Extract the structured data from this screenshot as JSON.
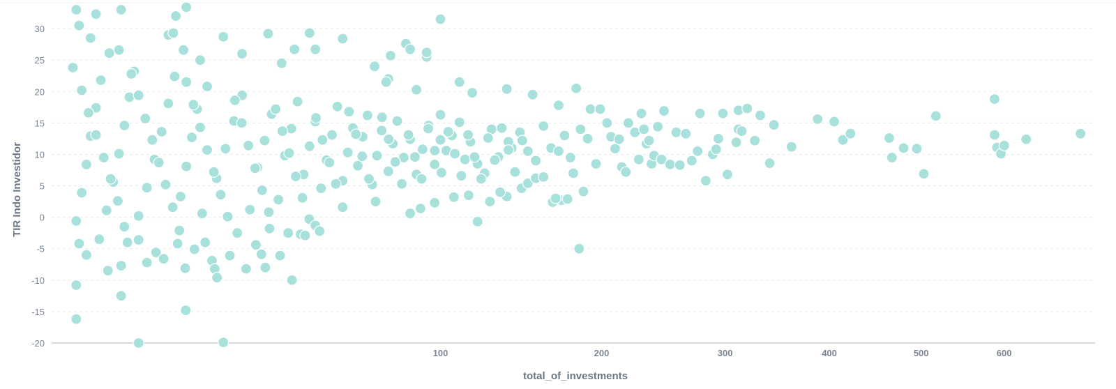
{
  "chart_data": {
    "type": "scatter",
    "xlabel": "total_of_investments",
    "ylabel": "TIR Indo Investidor",
    "x_scale": "sqrt",
    "xlim": [
      0,
      720
    ],
    "ylim": [
      -20,
      34
    ],
    "x_ticks": [
      100,
      200,
      300,
      400,
      500,
      600
    ],
    "y_ticks": [
      -20,
      -15,
      -10,
      -5,
      0,
      5,
      10,
      15,
      20,
      25,
      30
    ],
    "grid": "horizontal",
    "legend": "none",
    "point_color": "#a8e0dc",
    "series": [
      {
        "points": [
          [
            0.4,
            33
          ],
          [
            0.5,
            30.5
          ],
          [
            1.3,
            32.3
          ],
          [
            3.2,
            33
          ],
          [
            12,
            33.4
          ],
          [
            10.2,
            32
          ],
          [
            1.0,
            28.5
          ],
          [
            9,
            29
          ],
          [
            9.8,
            29.3
          ],
          [
            44,
            29.3
          ],
          [
            56,
            28.4
          ],
          [
            100,
            31.5
          ],
          [
            31,
            29.2
          ],
          [
            19.5,
            28.7
          ],
          [
            3.0,
            26.6
          ],
          [
            2.2,
            26.1
          ],
          [
            11.5,
            26.6
          ],
          [
            14.6,
            25
          ],
          [
            24,
            26
          ],
          [
            35,
            24.5
          ],
          [
            39,
            26.7
          ],
          [
            46,
            26.7
          ],
          [
            69,
            24
          ],
          [
            76,
            25.7
          ],
          [
            83,
            27.6
          ],
          [
            85,
            26.7
          ],
          [
            93,
            25.5
          ],
          [
            93,
            26.2
          ],
          [
            110,
            21.5
          ],
          [
            117,
            19.8
          ],
          [
            75,
            22
          ],
          [
            74,
            21.5
          ],
          [
            88,
            20.3
          ],
          [
            100,
            16.3
          ],
          [
            137,
            20.4
          ],
          [
            153,
            19.5
          ],
          [
            170,
            17.8
          ],
          [
            182,
            20.5
          ],
          [
            192,
            17.2
          ],
          [
            199,
            17.2
          ],
          [
            248,
            16.9
          ],
          [
            278,
            16.5
          ],
          [
            298,
            16.5
          ],
          [
            312,
            17
          ],
          [
            320,
            17.3
          ],
          [
            332,
            16.2
          ],
          [
            345,
            14.7
          ],
          [
            362,
            11.2
          ],
          [
            388,
            15.6
          ],
          [
            405,
            15.2
          ],
          [
            414,
            12.3
          ],
          [
            422,
            13.3
          ],
          [
            464,
            12.6
          ],
          [
            467,
            9.5
          ],
          [
            480,
            11
          ],
          [
            495,
            10.9
          ],
          [
            503,
            6.9
          ],
          [
            517,
            16.1
          ],
          [
            588,
            18.8
          ],
          [
            588,
            13.1
          ],
          [
            591,
            11.1
          ],
          [
            596,
            10.1
          ],
          [
            600,
            11.4
          ],
          [
            628,
            12.4
          ],
          [
            700,
            13.3
          ],
          [
            160,
            14.5
          ],
          [
            165,
            11
          ],
          [
            170,
            10.5
          ],
          [
            174,
            13
          ],
          [
            178,
            9.5
          ],
          [
            180,
            7
          ],
          [
            185,
            14
          ],
          [
            190,
            12.5
          ],
          [
            196,
            8.5
          ],
          [
            204,
            15
          ],
          [
            207,
            12.8
          ],
          [
            210,
            10.9
          ],
          [
            213,
            12.4
          ],
          [
            215,
            8
          ],
          [
            218,
            7.2
          ],
          [
            220,
            15
          ],
          [
            225,
            13.5
          ],
          [
            228,
            9.2
          ],
          [
            230,
            16.5
          ],
          [
            232,
            14
          ],
          [
            234,
            11.7
          ],
          [
            236,
            12.2
          ],
          [
            238,
            8.5
          ],
          [
            240,
            9.8
          ],
          [
            243,
            14.4
          ],
          [
            246,
            9.2
          ],
          [
            253,
            8.4
          ],
          [
            258,
            13.5
          ],
          [
            261,
            8.3
          ],
          [
            266,
            13.3
          ],
          [
            271,
            9
          ],
          [
            276,
            10.5
          ],
          [
            283,
            5.8
          ],
          [
            289,
            10
          ],
          [
            292,
            10.8
          ],
          [
            294,
            12.5
          ],
          [
            302,
            6.8
          ],
          [
            310,
            11.9
          ],
          [
            312,
            14
          ],
          [
            315,
            13.7
          ],
          [
            327,
            12.2
          ],
          [
            341,
            8.6
          ],
          [
            184,
            -5
          ],
          [
            120,
            -0.7
          ],
          [
            172,
            2.7
          ],
          [
            166,
            2.4
          ],
          [
            168,
            3
          ],
          [
            176,
            2.9
          ],
          [
            187,
            4.1
          ],
          [
            137,
            3.3
          ],
          [
            127,
            2.5
          ],
          [
            133,
            4
          ],
          [
            146,
            4.6
          ],
          [
            150,
            5.4
          ],
          [
            155,
            6.2
          ],
          [
            160,
            6.4
          ],
          [
            115,
            3.5
          ],
          [
            107,
            3.2
          ],
          [
            97,
            2.3
          ],
          [
            90,
            1.4
          ],
          [
            85,
            0.6
          ],
          [
            140,
            11
          ],
          [
            145,
            13.5
          ],
          [
            150,
            10.5
          ],
          [
            155,
            9
          ],
          [
            138,
            12
          ],
          [
            132,
            9.6
          ],
          [
            128,
            14
          ],
          [
            124,
            7
          ],
          [
            120,
            8.5
          ],
          [
            116,
            12
          ],
          [
            113,
            9.2
          ],
          [
            110,
            15.1
          ],
          [
            106,
            13
          ],
          [
            103,
            10.6
          ],
          [
            100,
            12.3
          ],
          [
            97,
            8.4
          ],
          [
            94,
            14.6
          ],
          [
            91,
            10.8
          ],
          [
            88,
            6.8
          ],
          [
            85,
            12.4
          ],
          [
            82,
            9.5
          ],
          [
            79,
            15.3
          ],
          [
            77,
            11.7
          ],
          [
            75,
            7.3
          ],
          [
            72,
            13.8
          ],
          [
            70,
            9.8
          ],
          [
            68,
            5.2
          ],
          [
            66,
            16.2
          ],
          [
            64,
            12.8
          ],
          [
            62,
            8.2
          ],
          [
            60,
            14.2
          ],
          [
            58,
            10.3
          ],
          [
            56,
            5.8
          ],
          [
            54,
            17.6
          ],
          [
            52,
            13.1
          ],
          [
            50,
            9.1
          ],
          [
            48,
            4.6
          ],
          [
            46,
            15.2
          ],
          [
            44,
            11.3
          ],
          [
            42,
            6.8
          ],
          [
            40,
            18.4
          ],
          [
            38,
            14.1
          ],
          [
            36,
            9.8
          ],
          [
            34,
            2.8
          ],
          [
            32,
            16.4
          ],
          [
            30,
            12.2
          ],
          [
            28,
            7.9
          ],
          [
            26,
            1.2
          ],
          [
            24,
            19.4
          ],
          [
            22,
            15.3
          ],
          [
            20,
            10.9
          ],
          [
            18,
            6.2
          ],
          [
            16,
            20.8
          ],
          [
            15,
            0.6
          ],
          [
            14,
            17.2
          ],
          [
            13,
            12.7
          ],
          [
            12,
            8.1
          ],
          [
            11,
            3.3
          ],
          [
            10,
            22.4
          ],
          [
            9,
            18.1
          ],
          [
            8,
            13.6
          ],
          [
            7,
            9.2
          ],
          [
            6,
            4.7
          ],
          [
            5,
            0.2
          ],
          [
            4.5,
            23.2
          ],
          [
            4,
            19.1
          ],
          [
            3.5,
            14.6
          ],
          [
            3,
            10.1
          ],
          [
            2.5,
            5.6
          ],
          [
            2,
            1.1
          ],
          [
            1.6,
            21.8
          ],
          [
            1.3,
            17.4
          ],
          [
            1,
            12.9
          ],
          [
            0.8,
            8.4
          ],
          [
            0.6,
            3.9
          ],
          [
            0.4,
            -0.6
          ],
          [
            0.3,
            23.8
          ],
          [
            0.6,
            20.2
          ],
          [
            0.9,
            16.6
          ],
          [
            1.3,
            13.1
          ],
          [
            1.8,
            9.5
          ],
          [
            2.3,
            6.1
          ],
          [
            2.9,
            2.6
          ],
          [
            3.5,
            -1.5
          ],
          [
            4.2,
            22.8
          ],
          [
            5.0,
            19.4
          ],
          [
            5.8,
            15.7
          ],
          [
            6.7,
            12.3
          ],
          [
            7.6,
            8.7
          ],
          [
            8.6,
            5.2
          ],
          [
            9.7,
            1.6
          ],
          [
            10.8,
            -2.1
          ],
          [
            12.0,
            21.5
          ],
          [
            13.3,
            17.9
          ],
          [
            14.6,
            14.3
          ],
          [
            16.0,
            10.7
          ],
          [
            17.4,
            7.2
          ],
          [
            18.9,
            3.6
          ],
          [
            20.5,
            0.1
          ],
          [
            22.2,
            18.6
          ],
          [
            23.9,
            15
          ],
          [
            25.6,
            11.4
          ],
          [
            27.4,
            7.8
          ],
          [
            29.3,
            4.3
          ],
          [
            31.2,
            0.8
          ],
          [
            33.2,
            17.2
          ],
          [
            35.2,
            13.7
          ],
          [
            37.3,
            10.2
          ],
          [
            39.4,
            6.5
          ],
          [
            41.6,
            3.1
          ],
          [
            43.9,
            -0.3
          ],
          [
            46.2,
            15.8
          ],
          [
            48.5,
            12.3
          ],
          [
            51,
            8.7
          ],
          [
            53.4,
            5.3
          ],
          [
            56,
            1.6
          ],
          [
            58.5,
            16.8
          ],
          [
            61.2,
            13.2
          ],
          [
            63.8,
            9.7
          ],
          [
            66.6,
            6.1
          ],
          [
            69.4,
            2.5
          ],
          [
            72.2,
            15.9
          ],
          [
            75.1,
            12.4
          ],
          [
            78.1,
            8.8
          ],
          [
            81.1,
            5.3
          ],
          [
            84.2,
            13.1
          ],
          [
            87.3,
            9.6
          ],
          [
            90.5,
            6.1
          ],
          [
            93.8,
            14.1
          ],
          [
            97.1,
            10.6
          ],
          [
            100.5,
            7.1
          ],
          [
            104,
            13.6
          ],
          [
            107.5,
            10.1
          ],
          [
            111,
            6.6
          ],
          [
            114.7,
            13.1
          ],
          [
            118.3,
            9.6
          ],
          [
            122,
            6.1
          ],
          [
            126,
            12.6
          ],
          [
            129.9,
            9.1
          ],
          [
            134,
            14.2
          ],
          [
            138,
            10.7
          ],
          [
            142,
            7.2
          ],
          [
            146.5,
            12.2
          ],
          [
            0.5,
            -4.2
          ],
          [
            0.8,
            -6
          ],
          [
            1.5,
            -3.5
          ],
          [
            2.1,
            -8.5
          ],
          [
            3.2,
            -7.7
          ],
          [
            3.8,
            -4
          ],
          [
            5,
            -3.6
          ],
          [
            6,
            -7.2
          ],
          [
            7.2,
            -5.6
          ],
          [
            8.3,
            -6.6
          ],
          [
            10.5,
            -4.2
          ],
          [
            11.8,
            -8.1
          ],
          [
            13.5,
            -5.1
          ],
          [
            15.6,
            -4
          ],
          [
            17,
            -6.9
          ],
          [
            17.6,
            -8.2
          ],
          [
            18.1,
            -9.6
          ],
          [
            21,
            -6.1
          ],
          [
            22.8,
            -2.5
          ],
          [
            25,
            -8.2
          ],
          [
            27.6,
            -4.4
          ],
          [
            29.1,
            -5.9
          ],
          [
            30.2,
            -8
          ],
          [
            31.4,
            -1.8
          ],
          [
            34.5,
            -6.1
          ],
          [
            37,
            -2.5
          ],
          [
            38.2,
            -10
          ],
          [
            41,
            -2.7
          ],
          [
            42.5,
            -2.9
          ],
          [
            46,
            -1.3
          ],
          [
            47.5,
            -2.2
          ],
          [
            0.4,
            -10.8
          ],
          [
            0.4,
            -16.2
          ],
          [
            3.2,
            -12.5
          ],
          [
            5,
            -20
          ],
          [
            11.9,
            -14.8
          ],
          [
            19.5,
            -19.9
          ]
        ]
      }
    ]
  }
}
